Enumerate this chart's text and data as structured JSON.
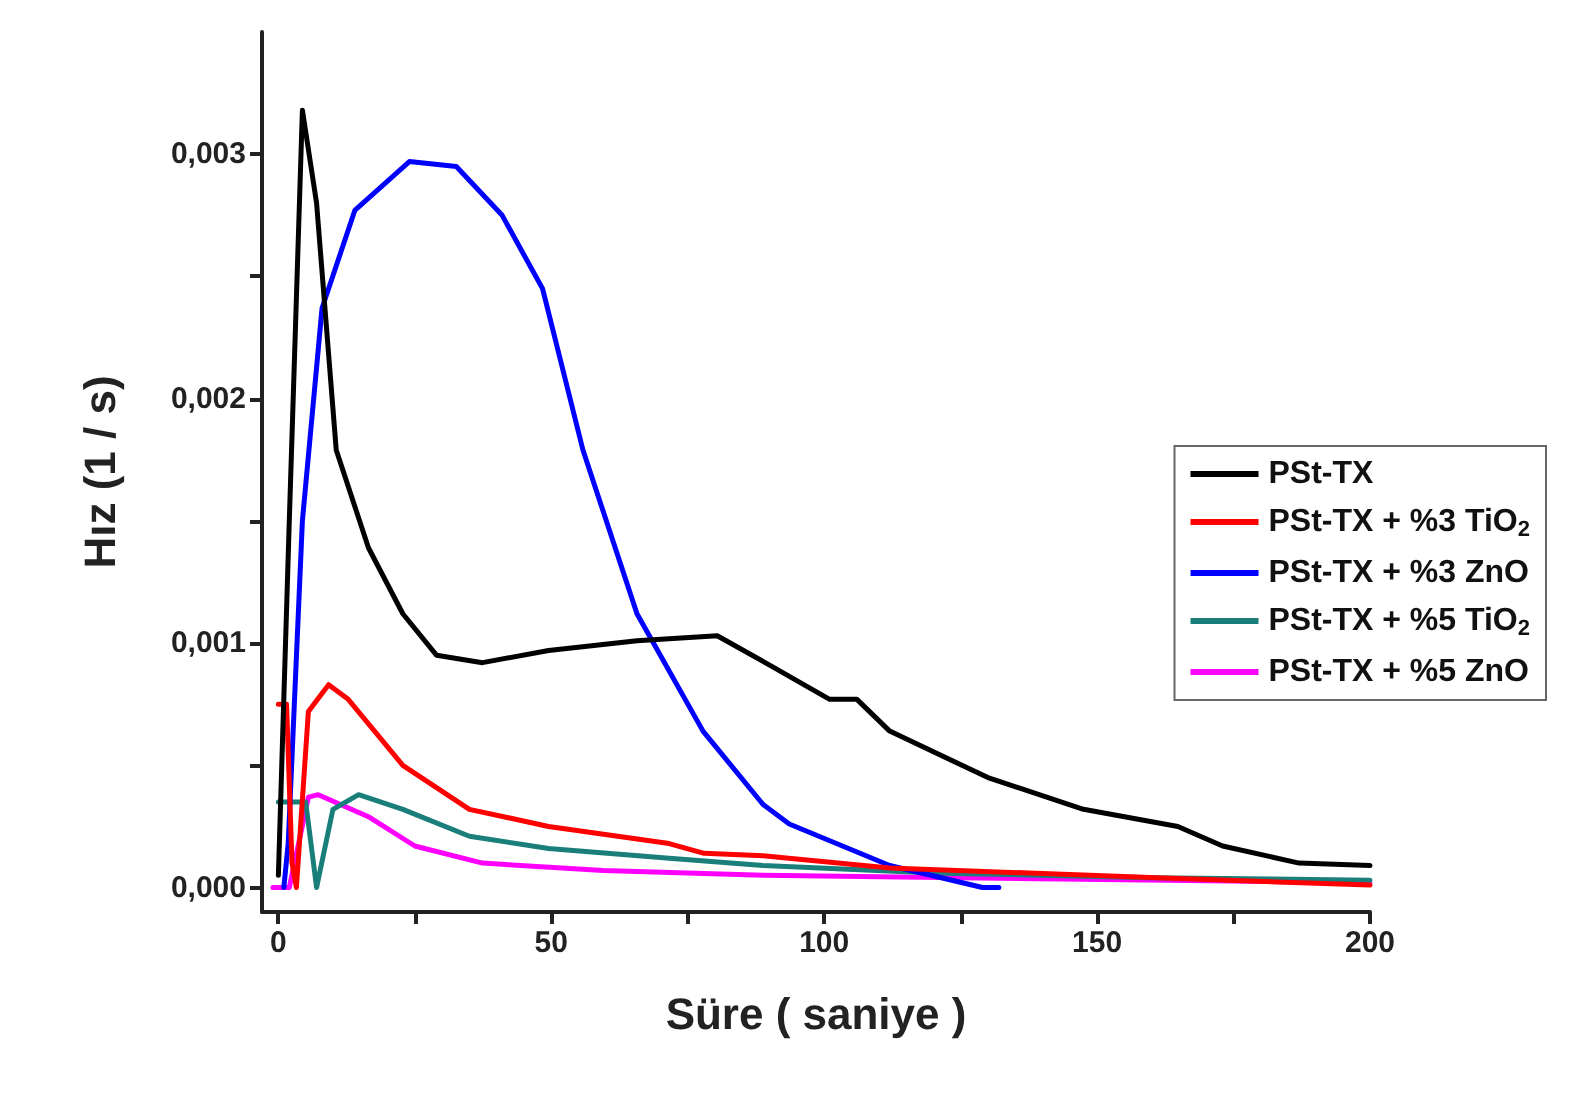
{
  "chart_data": {
    "type": "line",
    "xlabel": "Süre ( saniye )",
    "ylabel": "Hız (1 / s)",
    "xlim": [
      -3,
      200
    ],
    "xticks": [
      0,
      {
        "value": 25,
        "label": null
      },
      50,
      {
        "value": 75,
        "label": null
      },
      100,
      {
        "value": 125,
        "label": null
      },
      150,
      {
        "value": 175,
        "label": null
      },
      200
    ],
    "ylim": [
      -0.0001,
      0.0035
    ],
    "yticks": [
      {
        "value": 0,
        "label": "0,000"
      },
      {
        "value": 0.0005,
        "label": null
      },
      {
        "value": 0.001,
        "label": "0,001"
      },
      {
        "value": 0.0015,
        "label": null
      },
      {
        "value": 0.002,
        "label": "0,002"
      },
      {
        "value": 0.0025,
        "label": null
      },
      {
        "value": 0.003,
        "label": "0,003"
      }
    ],
    "grid": false,
    "legend": "right",
    "marker": "none",
    "line_style": "solid",
    "series": [
      {
        "name": "PSt-TX",
        "color": "#000000",
        "x": [
          0,
          2,
          4.4,
          7,
          10.6,
          16.5,
          22.8,
          29,
          37.4,
          49.5,
          65.7,
          80.4,
          90,
          101,
          106,
          112,
          130,
          147.5,
          164.8,
          173,
          187,
          200
        ],
        "values": [
          5e-05,
          0.0015,
          0.00318,
          0.0028,
          0.00179,
          0.00139,
          0.00112,
          0.00095,
          0.00092,
          0.00097,
          0.00101,
          0.00103,
          0.00091,
          0.00077,
          0.00077,
          0.00064,
          0.00045,
          0.00032,
          0.00025,
          0.00017,
          0.0001,
          9e-05
        ]
      },
      {
        "name": "PSt-TX + %3 TiO$_{2}$",
        "color": "#ff0000",
        "x": [
          0,
          1.5,
          2.5,
          3.3,
          5.5,
          9.2,
          12.8,
          22.8,
          35,
          49.5,
          71.6,
          78,
          88.8,
          112,
          161,
          200
        ],
        "values": [
          0.00075,
          0.00075,
          0.0001,
          0,
          0.00072,
          0.00083,
          0.00077,
          0.0005,
          0.00032,
          0.00025,
          0.00018,
          0.00014,
          0.00013,
          8e-05,
          4e-05,
          1e-05
        ]
      },
      {
        "name": "PSt-TX + %3 ZnO",
        "color": "#0000ff",
        "x": [
          1,
          1.8,
          4.4,
          8,
          14,
          24,
          32.6,
          41,
          48.4,
          55.8,
          65.7,
          77.8,
          88.8,
          93.6,
          112,
          129,
          132
        ],
        "values": [
          0,
          0.00018,
          0.0015,
          0.00237,
          0.00277,
          0.00297,
          0.00295,
          0.00275,
          0.00245,
          0.00179,
          0.00112,
          0.00064,
          0.00034,
          0.00026,
          9e-05,
          0,
          0
        ]
      },
      {
        "name": "PSt-TX + %5 TiO$_{2}$",
        "color": "#1a7f7a",
        "x": [
          0,
          5,
          7,
          10,
          14.7,
          22.8,
          35,
          49.5,
          71.6,
          88.8,
          120,
          160,
          200
        ],
        "values": [
          0.00035,
          0.00035,
          0,
          0.00032,
          0.00038,
          0.00032,
          0.00021,
          0.00016,
          0.00012,
          9e-05,
          6e-05,
          4e-05,
          3e-05
        ]
      },
      {
        "name": "PSt-TX + %5 ZnO",
        "color": "#ff00ff",
        "x": [
          -1,
          2,
          5.5,
          7.3,
          16.5,
          25,
          37.4,
          59.5,
          88.8,
          200
        ],
        "values": [
          0,
          0,
          0.00037,
          0.00038,
          0.00029,
          0.00017,
          0.0001,
          7e-05,
          5e-05,
          2e-05
        ]
      }
    ]
  }
}
